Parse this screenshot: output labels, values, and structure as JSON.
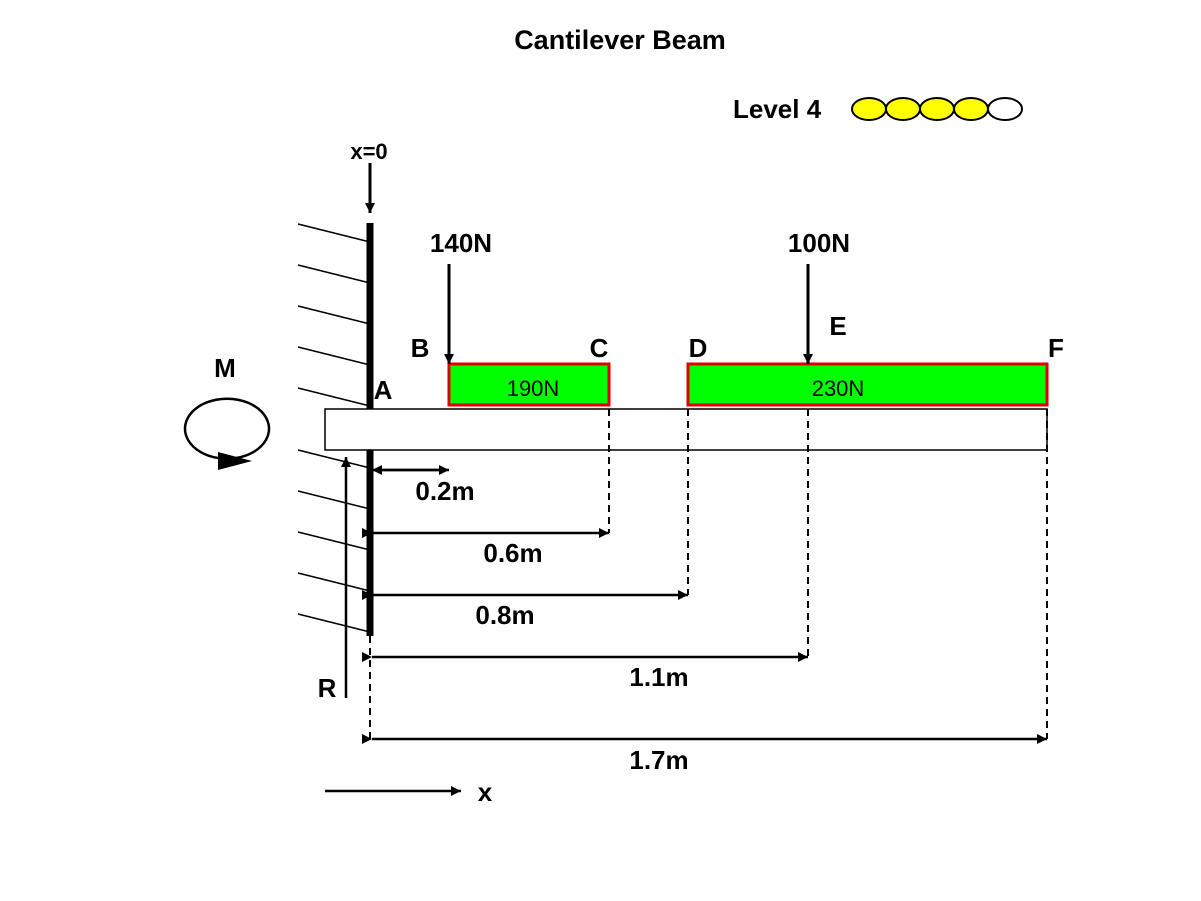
{
  "title": "Cantilever Beam",
  "level": {
    "label": "Level 4",
    "filled": 4,
    "total": 5,
    "fill_color": "#ffff00",
    "empty_color": "#ffffff"
  },
  "origin_label": "x=0",
  "points": {
    "A": "A",
    "B": "B",
    "C": "C",
    "D": "D",
    "E": "E",
    "F": "F"
  },
  "reactions": {
    "moment": "M",
    "force": "R"
  },
  "axis_label": "x",
  "point_loads": [
    {
      "label": "140N",
      "at": "B"
    },
    {
      "label": "100N",
      "at": "E"
    }
  ],
  "distributed_loads": [
    {
      "label": "190N",
      "from": "B",
      "to": "C",
      "fill": "#00ff00",
      "border": "#e00000"
    },
    {
      "label": "230N",
      "from": "D",
      "to": "F",
      "fill": "#00ff00",
      "border": "#e00000"
    }
  ],
  "dimensions": [
    {
      "label": "0.2m",
      "to": "B"
    },
    {
      "label": "0.6m",
      "to": "C"
    },
    {
      "label": "0.8m",
      "to": "D"
    },
    {
      "label": "1.1m",
      "to": "E"
    },
    {
      "label": "1.7m",
      "to": "F"
    }
  ]
}
